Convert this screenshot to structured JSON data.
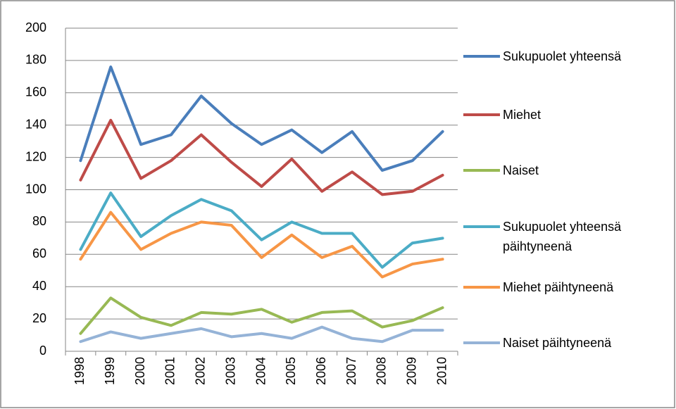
{
  "chart_data": {
    "type": "line",
    "categories": [
      "1998",
      "1999",
      "2000",
      "2001",
      "2002",
      "2003",
      "2004",
      "2005",
      "2006",
      "2007",
      "2008",
      "2009",
      "2010"
    ],
    "series": [
      {
        "name": "Sukupuolet yhteensä",
        "color": "#4a7ebb",
        "values": [
          118,
          176,
          128,
          134,
          158,
          141,
          128,
          137,
          123,
          136,
          112,
          118,
          136
        ]
      },
      {
        "name": "Miehet",
        "color": "#be4b48",
        "values": [
          106,
          143,
          107,
          118,
          134,
          117,
          102,
          119,
          99,
          111,
          97,
          99,
          109
        ]
      },
      {
        "name": "Naiset",
        "color": "#98b954",
        "values": [
          11,
          33,
          21,
          16,
          24,
          23,
          26,
          18,
          24,
          25,
          15,
          19,
          27
        ]
      },
      {
        "name": "Sukupuolet yhteensä päihtyneenä",
        "color": "#4bacc6",
        "values": [
          63,
          98,
          71,
          84,
          94,
          87,
          69,
          80,
          73,
          73,
          52,
          67,
          70
        ]
      },
      {
        "name": "Miehet päihtyneenä",
        "color": "#f79646",
        "values": [
          57,
          86,
          63,
          73,
          80,
          78,
          58,
          72,
          58,
          65,
          46,
          54,
          57
        ]
      },
      {
        "name": "Naiset päihtyneenä",
        "color": "#95b3d7",
        "values": [
          6,
          12,
          8,
          11,
          14,
          9,
          11,
          8,
          15,
          8,
          6,
          13,
          13
        ]
      }
    ],
    "ylim": [
      0,
      200
    ],
    "yticks": [
      0,
      20,
      40,
      60,
      80,
      100,
      120,
      140,
      160,
      180,
      200
    ],
    "grid": true,
    "legend": "right"
  }
}
